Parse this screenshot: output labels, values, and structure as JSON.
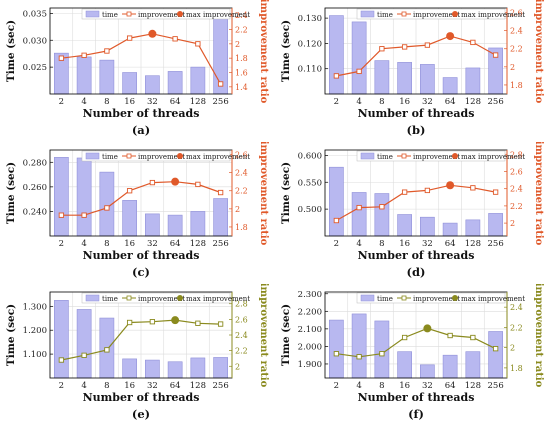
{
  "figure": {
    "legend_labels": {
      "time": "time",
      "improvement": "improvement",
      "max": "max improvement"
    }
  },
  "chart_data": [
    {
      "type": "bar",
      "panel_label": "(a)",
      "categories": [
        "2",
        "4",
        "8",
        "16",
        "32",
        "64",
        "128",
        "256"
      ],
      "xlabel": "Number of threads",
      "ylabel": "Time (sec)",
      "ylabel_right": "improvement ratio",
      "ylim": [
        0.02,
        0.036
      ],
      "yticks": [
        0.025,
        0.03,
        0.035
      ],
      "ytick_labels": [
        "0.025",
        "0.030",
        "0.035"
      ],
      "ylim_right": [
        1.3,
        2.5
      ],
      "yticks_right": [
        1.4,
        1.6,
        1.8,
        2,
        2.2,
        2.4
      ],
      "ytick_labels_right": [
        "1.4",
        "1.6",
        "1.8",
        "2",
        "2.2",
        "2.4"
      ],
      "series": [
        {
          "name": "time",
          "values": [
            0.0276,
            0.0269,
            0.0263,
            0.024,
            0.0234,
            0.0242,
            0.025,
            0.0351
          ]
        },
        {
          "name": "improvement",
          "values": [
            1.8,
            1.84,
            1.9,
            2.08,
            2.14,
            2.07,
            2.0,
            1.44
          ]
        }
      ],
      "max_improvement": {
        "category": "32",
        "value": 2.14
      },
      "accent": "#e0592a",
      "bar_color": "#b8b8f0",
      "legend_position": "top"
    },
    {
      "type": "bar",
      "panel_label": "(b)",
      "categories": [
        "2",
        "4",
        "8",
        "16",
        "32",
        "64",
        "128",
        "256"
      ],
      "xlabel": "Number of threads",
      "ylabel": "Time (sec)",
      "ylabel_right": "improvement ratio",
      "ylim": [
        0.1,
        0.134
      ],
      "yticks": [
        0.11,
        0.12,
        0.13
      ],
      "ytick_labels": [
        "0.110",
        "0.120",
        "0.130"
      ],
      "ylim_right": [
        1.7,
        2.65
      ],
      "yticks_right": [
        1.8,
        2,
        2.2,
        2.4,
        2.6
      ],
      "ytick_labels_right": [
        "1.8",
        "2",
        "2.2",
        "2.4",
        "2.6"
      ],
      "series": [
        {
          "name": "time",
          "values": [
            0.131,
            0.1285,
            0.1132,
            0.1125,
            0.1117,
            0.1065,
            0.1103,
            0.1182
          ]
        },
        {
          "name": "improvement",
          "values": [
            1.9,
            1.95,
            2.2,
            2.22,
            2.24,
            2.34,
            2.27,
            2.13
          ]
        }
      ],
      "max_improvement": {
        "category": "64",
        "value": 2.34
      },
      "accent": "#e0592a",
      "bar_color": "#b8b8f0",
      "legend_position": "top"
    },
    {
      "type": "bar",
      "panel_label": "(c)",
      "categories": [
        "2",
        "4",
        "8",
        "16",
        "32",
        "64",
        "128",
        "256"
      ],
      "xlabel": "Number of threads",
      "ylabel": "Time (sec)",
      "ylabel_right": "improvement ratio",
      "ylim": [
        0.22,
        0.29
      ],
      "yticks": [
        0.24,
        0.26,
        0.28
      ],
      "ytick_labels": [
        "0.240",
        "0.260",
        "0.280"
      ],
      "ylim_right": [
        1.7,
        2.65
      ],
      "yticks_right": [
        1.8,
        2,
        2.2,
        2.4,
        2.6
      ],
      "ytick_labels_right": [
        "1.8",
        "2",
        "2.2",
        "2.4",
        "2.6"
      ],
      "series": [
        {
          "name": "time",
          "values": [
            0.284,
            0.2835,
            0.272,
            0.249,
            0.238,
            0.237,
            0.24,
            0.2505
          ]
        },
        {
          "name": "improvement",
          "values": [
            1.93,
            1.93,
            2.01,
            2.2,
            2.29,
            2.3,
            2.27,
            2.18
          ]
        }
      ],
      "max_improvement": {
        "category": "64",
        "value": 2.3
      },
      "accent": "#e0592a",
      "bar_color": "#b8b8f0",
      "legend_position": "top"
    },
    {
      "type": "bar",
      "panel_label": "(d)",
      "categories": [
        "2",
        "4",
        "8",
        "16",
        "32",
        "64",
        "128",
        "256"
      ],
      "xlabel": "Number of threads",
      "ylabel": "Time (sec)",
      "ylabel_right": "improvement ratio",
      "ylim": [
        0.45,
        0.61
      ],
      "yticks": [
        0.5,
        0.55,
        0.6
      ],
      "ytick_labels": [
        "0.500",
        "0.550",
        "0.600"
      ],
      "ylim_right": [
        1.85,
        2.85
      ],
      "yticks_right": [
        2,
        2.2,
        2.4,
        2.6,
        2.8
      ],
      "ytick_labels_right": [
        "2",
        "2.2",
        "2.4",
        "2.6",
        "2.8"
      ],
      "series": [
        {
          "name": "time",
          "values": [
            0.578,
            0.531,
            0.529,
            0.49,
            0.485,
            0.474,
            0.48,
            0.492
          ]
        },
        {
          "name": "improvement",
          "values": [
            2.03,
            2.18,
            2.19,
            2.36,
            2.38,
            2.44,
            2.41,
            2.36
          ]
        }
      ],
      "max_improvement": {
        "category": "64",
        "value": 2.44
      },
      "accent": "#e0592a",
      "bar_color": "#b8b8f0",
      "legend_position": "top"
    },
    {
      "type": "bar",
      "panel_label": "(e)",
      "categories": [
        "2",
        "4",
        "8",
        "16",
        "32",
        "64",
        "128",
        "256"
      ],
      "xlabel": "Number of threads",
      "ylabel": "Time (sec)",
      "ylabel_right": "improvement ratio",
      "ylim": [
        1.0,
        1.36
      ],
      "yticks": [
        1.1,
        1.2,
        1.3
      ],
      "ytick_labels": [
        "1.100",
        "1.200",
        "1.300"
      ],
      "ylim_right": [
        1.85,
        2.95
      ],
      "yticks_right": [
        2,
        2.2,
        2.4,
        2.6,
        2.8
      ],
      "ytick_labels_right": [
        "2",
        "2.2",
        "2.4",
        "2.6",
        "2.8"
      ],
      "series": [
        {
          "name": "time",
          "values": [
            1.325,
            1.287,
            1.251,
            1.08,
            1.075,
            1.068,
            1.084,
            1.086
          ]
        },
        {
          "name": "improvement",
          "values": [
            2.08,
            2.14,
            2.21,
            2.56,
            2.57,
            2.59,
            2.55,
            2.54
          ]
        }
      ],
      "max_improvement": {
        "category": "64",
        "value": 2.59
      },
      "accent": "#8a8a1e",
      "bar_color": "#b8b8f0",
      "legend_position": "top"
    },
    {
      "type": "bar",
      "panel_label": "(f)",
      "categories": [
        "2",
        "4",
        "8",
        "16",
        "32",
        "64",
        "128",
        "256"
      ],
      "xlabel": "Number of threads",
      "ylabel": "Time (sec)",
      "ylabel_right": "improvement ratio",
      "ylim": [
        1.82,
        2.31
      ],
      "yticks": [
        1.9,
        2.0,
        2.1,
        2.2,
        2.3
      ],
      "ytick_labels": [
        "1.900",
        "2.000",
        "2.100",
        "2.200",
        "2.300"
      ],
      "ylim_right": [
        1.7,
        2.55
      ],
      "yticks_right": [
        1.8,
        2,
        2.2,
        2.4
      ],
      "ytick_labels_right": [
        "1.8",
        "2",
        "2.2",
        "2.4"
      ],
      "series": [
        {
          "name": "time",
          "values": [
            2.15,
            2.185,
            2.145,
            1.97,
            1.895,
            1.95,
            1.97,
            2.085
          ]
        },
        {
          "name": "improvement",
          "values": [
            1.94,
            1.91,
            1.94,
            2.1,
            2.19,
            2.12,
            2.1,
            1.99
          ]
        }
      ],
      "max_improvement": {
        "category": "32",
        "value": 2.19
      },
      "accent": "#8a8a1e",
      "bar_color": "#b8b8f0",
      "legend_position": "top"
    }
  ]
}
